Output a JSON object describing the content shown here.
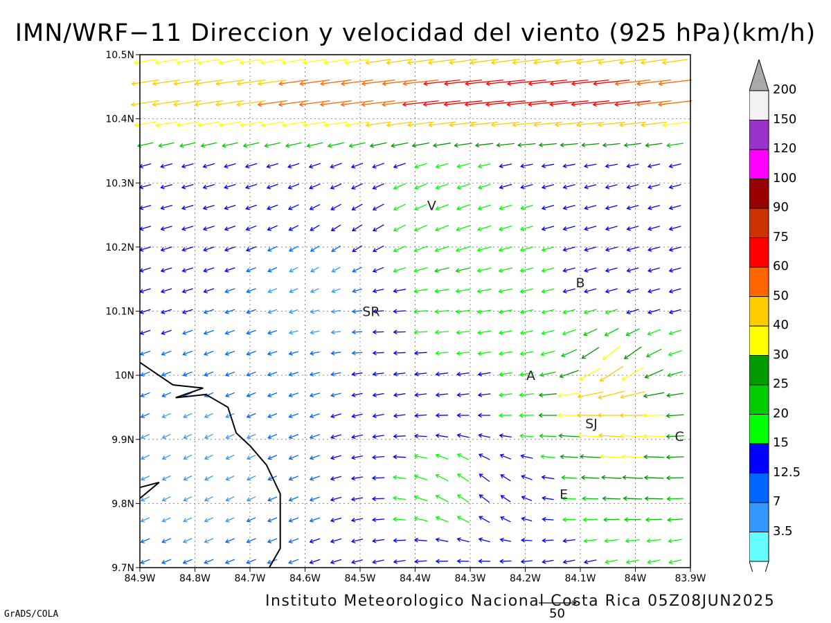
{
  "title": "IMN/WRF−11 Direccion y velocidad del viento (925 hPa)(km/h)",
  "credit": "Instituto Meteorologico Nacional Costa Rica 05Z08JUN2025",
  "software": "GrADS/COLA",
  "scale_vector_value": "50",
  "axes": {
    "x_ticks": [
      "84.9W",
      "84.8W",
      "84.7W",
      "84.6W",
      "84.5W",
      "84.4W",
      "84.3W",
      "84.2W",
      "84.1W",
      "84W",
      "83.9W"
    ],
    "y_ticks": [
      "10.5N",
      "10.4N",
      "10.3N",
      "10.2N",
      "10.1N",
      "10N",
      "9.9N",
      "9.8N",
      "9.7N"
    ]
  },
  "places": [
    {
      "label": "V",
      "lon": -84.37,
      "lat": 10.265
    },
    {
      "label": "B",
      "lon": -84.1,
      "lat": 10.145
    },
    {
      "label": "SR",
      "lon": -84.48,
      "lat": 10.1
    },
    {
      "label": "A",
      "lon": -84.19,
      "lat": 10.0
    },
    {
      "label": "SJ",
      "lon": -84.08,
      "lat": 9.925
    },
    {
      "label": "C",
      "lon": -83.92,
      "lat": 9.905
    },
    {
      "label": "E",
      "lon": -84.13,
      "lat": 9.815
    }
  ],
  "colorbar": {
    "labels": [
      "200",
      "150",
      "120",
      "100",
      "90",
      "75",
      "60",
      "50",
      "40",
      "30",
      "25",
      "20",
      "15",
      "12.5",
      "7",
      "3.5"
    ],
    "colors": [
      "#f2f2f2",
      "#9a33cc",
      "#ff00ff",
      "#990000",
      "#cc3300",
      "#ff0000",
      "#ff6600",
      "#ffcc00",
      "#ffff00",
      "#009900",
      "#00cc00",
      "#00ff00",
      "#0000ff",
      "#0066ff",
      "#3399ff",
      "#66ffff"
    ],
    "overflow_color": "#aaaaaa"
  }
}
